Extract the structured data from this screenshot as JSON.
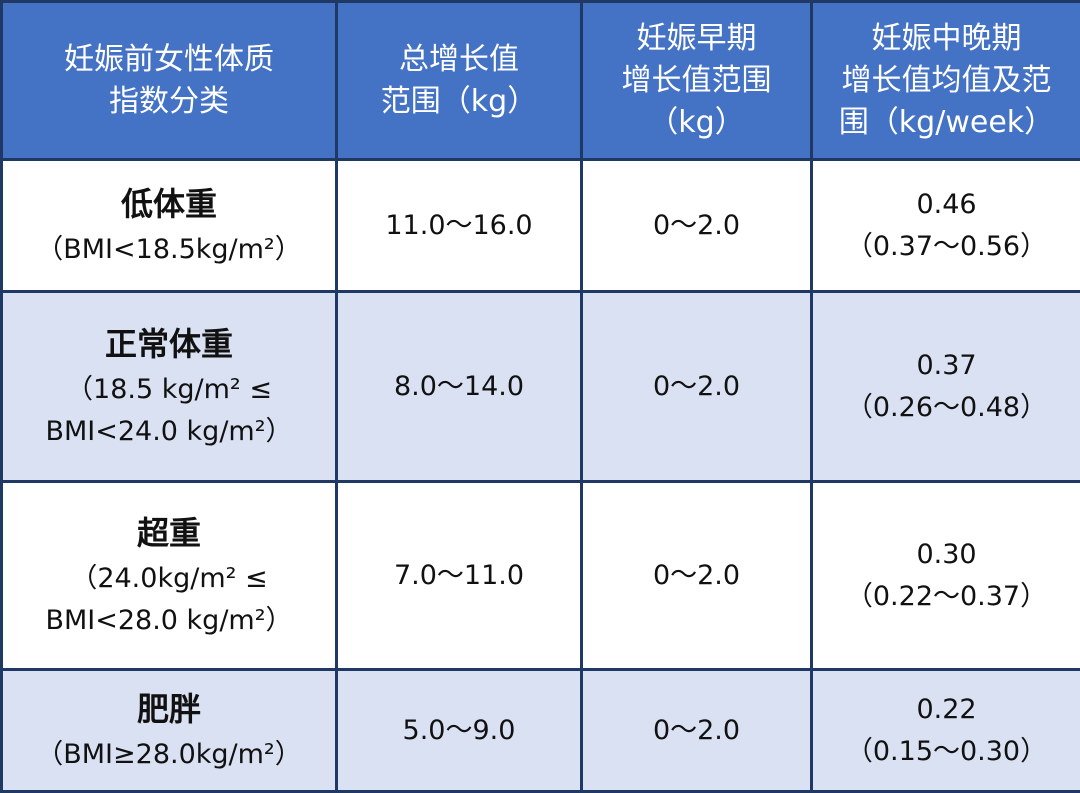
{
  "table": {
    "header": [
      [
        "妊娠前女性体质",
        "指数分类"
      ],
      [
        "总增长值",
        "范围（kg）"
      ],
      [
        "妊娠早期",
        "增长值范围",
        "（kg）"
      ],
      [
        "妊娠中晚期",
        "增长值均值及范",
        "围（kg/week）"
      ]
    ],
    "rows": [
      [
        [
          "低体重",
          "（BMI<18.5kg/m²）"
        ],
        [
          "11.0～16.0"
        ],
        [
          "0～2.0"
        ],
        [
          "0.46",
          "（0.37～0.56）"
        ]
      ],
      [
        [
          "正常体重",
          "（18.5 kg/m² ≤",
          "BMI<24.0 kg/m²）"
        ],
        [
          "8.0～14.0"
        ],
        [
          "0～2.0"
        ],
        [
          "0.37",
          "（0.26～0.48）"
        ]
      ],
      [
        [
          "超重",
          "（24.0kg/m² ≤",
          "BMI<28.0 kg/m²）"
        ],
        [
          "7.0～11.0"
        ],
        [
          "0～2.0"
        ],
        [
          "0.30",
          "（0.22～0.37）"
        ]
      ],
      [
        [
          "肥胖",
          "（BMI≥28.0kg/m²）"
        ],
        [
          "5.0～9.0"
        ],
        [
          "0～2.0"
        ],
        [
          "0.22",
          "（0.15～0.30）"
        ]
      ]
    ]
  }
}
